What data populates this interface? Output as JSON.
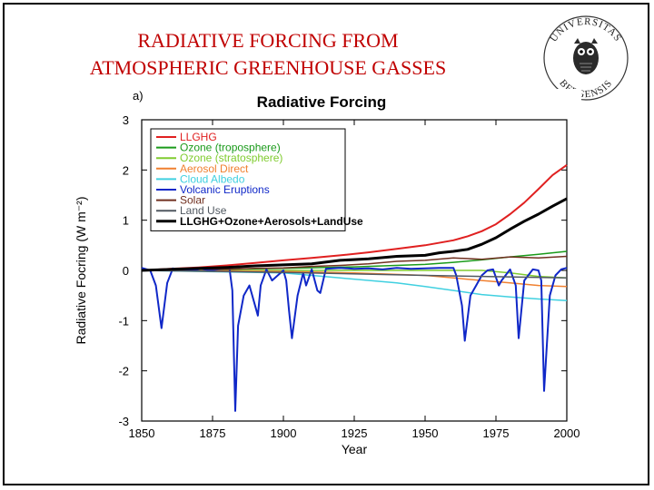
{
  "slide": {
    "title_line1": "RADIATIVE FORCING FROM",
    "title_line2": "ATMOSPHERIC GREENHOUSE GASSES",
    "title_color": "#c00000"
  },
  "logo": {
    "top_text": "UNIVERSITAS",
    "bottom_text": "BERGENSIS"
  },
  "chart_data": {
    "type": "line",
    "panel_label": "a)",
    "title": "Radiative Forcing",
    "xlabel": "Year",
    "ylabel": "Radiative Focring (W m⁻²)",
    "xlim": [
      1850,
      2000
    ],
    "ylim": [
      -3,
      3
    ],
    "x_ticks": [
      1850,
      1875,
      1900,
      1925,
      1950,
      1975,
      2000
    ],
    "y_ticks": [
      3,
      2,
      1,
      0,
      -1,
      -2,
      -3
    ],
    "legend_position": "top-left",
    "series": [
      {
        "name": "LLGHG",
        "color": "#e02020",
        "width": 2,
        "x": [
          1850,
          1860,
          1870,
          1880,
          1890,
          1900,
          1910,
          1920,
          1930,
          1940,
          1950,
          1960,
          1965,
          1970,
          1975,
          1980,
          1985,
          1990,
          1995,
          2000
        ],
        "y": [
          0,
          0.03,
          0.06,
          0.1,
          0.15,
          0.2,
          0.25,
          0.3,
          0.36,
          0.43,
          0.5,
          0.6,
          0.68,
          0.78,
          0.92,
          1.12,
          1.35,
          1.62,
          1.9,
          2.1
        ]
      },
      {
        "name": "Ozone (troposphere)",
        "color": "#1a9a1a",
        "width": 1.5,
        "x": [
          1850,
          1875,
          1900,
          1925,
          1950,
          1960,
          1970,
          1980,
          1990,
          2000
        ],
        "y": [
          0,
          0.02,
          0.04,
          0.07,
          0.12,
          0.16,
          0.21,
          0.27,
          0.32,
          0.38
        ]
      },
      {
        "name": "Ozone (stratosphere)",
        "color": "#80cc30",
        "width": 1.5,
        "x": [
          1850,
          1970,
          1980,
          1990,
          2000
        ],
        "y": [
          0,
          0,
          -0.05,
          -0.12,
          -0.15
        ]
      },
      {
        "name": "Aerosol Direct",
        "color": "#f08030",
        "width": 1.5,
        "x": [
          1850,
          1900,
          1925,
          1950,
          1960,
          1970,
          1980,
          1990,
          2000
        ],
        "y": [
          0,
          -0.02,
          -0.05,
          -0.1,
          -0.15,
          -0.2,
          -0.25,
          -0.3,
          -0.32
        ]
      },
      {
        "name": "Cloud Albedo",
        "color": "#40d0e0",
        "width": 1.5,
        "x": [
          1850,
          1900,
          1920,
          1940,
          1950,
          1960,
          1970,
          1980,
          1990,
          2000
        ],
        "y": [
          0,
          -0.05,
          -0.15,
          -0.25,
          -0.32,
          -0.4,
          -0.48,
          -0.53,
          -0.57,
          -0.6
        ]
      },
      {
        "name": "Volcanic Eruptions",
        "color": "#1028c8",
        "width": 2,
        "x": [
          1850,
          1853,
          1855,
          1857,
          1859,
          1861,
          1863,
          1868,
          1871,
          1874,
          1877,
          1881,
          1882,
          1883,
          1884,
          1886,
          1888,
          1890,
          1891,
          1892,
          1894,
          1896,
          1898,
          1900,
          1901,
          1902,
          1903,
          1905,
          1907,
          1908,
          1910,
          1912,
          1913,
          1915,
          1920,
          1925,
          1930,
          1935,
          1940,
          1945,
          1950,
          1955,
          1960,
          1961,
          1963,
          1964,
          1966,
          1968,
          1970,
          1972,
          1974,
          1976,
          1977,
          1980,
          1982,
          1983,
          1985,
          1988,
          1990,
          1991,
          1992,
          1994,
          1996,
          1998,
          2000
        ],
        "y": [
          0.05,
          0,
          -0.3,
          -1.15,
          -0.25,
          0.04,
          0.02,
          0,
          0.03,
          0,
          0.02,
          0.03,
          -0.4,
          -2.8,
          -1.1,
          -0.5,
          -0.3,
          -0.7,
          -0.9,
          -0.3,
          0.02,
          -0.2,
          -0.1,
          0,
          -0.2,
          -0.8,
          -1.35,
          -0.5,
          -0.05,
          -0.3,
          0.02,
          -0.4,
          -0.45,
          0.03,
          0.05,
          0.03,
          0.04,
          0.02,
          0.05,
          0.03,
          0.04,
          0.05,
          0.05,
          -0.1,
          -0.7,
          -1.4,
          -0.5,
          -0.3,
          -0.1,
          0,
          0.02,
          -0.3,
          -0.2,
          0.02,
          -0.3,
          -1.35,
          -0.2,
          0.02,
          0,
          -0.2,
          -2.4,
          -0.5,
          -0.1,
          0.02,
          0.05
        ]
      },
      {
        "name": "Solar",
        "color": "#703020",
        "width": 1.5,
        "x": [
          1850,
          1860,
          1870,
          1880,
          1890,
          1900,
          1910,
          1920,
          1930,
          1940,
          1950,
          1960,
          1970,
          1980,
          1990,
          2000
        ],
        "y": [
          0,
          0.01,
          0.03,
          0.02,
          0.04,
          0.05,
          0.08,
          0.1,
          0.13,
          0.18,
          0.2,
          0.25,
          0.22,
          0.27,
          0.25,
          0.28
        ]
      },
      {
        "name": "Land Use",
        "color": "#505860",
        "width": 1.5,
        "x": [
          1850,
          1900,
          1950,
          2000
        ],
        "y": [
          0,
          -0.04,
          -0.1,
          -0.15
        ]
      },
      {
        "name": "LLGHG+Ozone+Aerosols+LandUse",
        "color": "#000000",
        "width": 3,
        "x": [
          1850,
          1860,
          1870,
          1880,
          1890,
          1900,
          1910,
          1920,
          1930,
          1940,
          1950,
          1955,
          1960,
          1965,
          1970,
          1975,
          1980,
          1985,
          1990,
          1995,
          2000
        ],
        "y": [
          0,
          0.02,
          0.04,
          0.06,
          0.09,
          0.11,
          0.13,
          0.2,
          0.23,
          0.28,
          0.3,
          0.35,
          0.38,
          0.42,
          0.52,
          0.65,
          0.82,
          0.98,
          1.12,
          1.28,
          1.43
        ]
      }
    ]
  }
}
